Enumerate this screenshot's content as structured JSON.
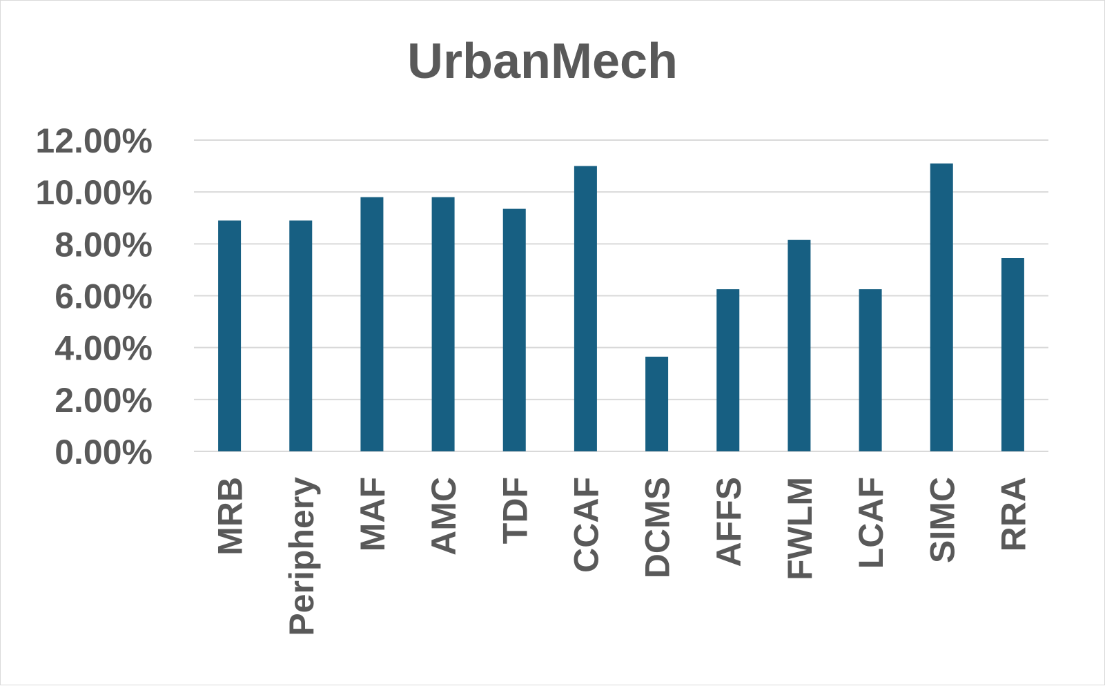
{
  "chart_data": {
    "type": "bar",
    "title": "UrbanMech",
    "xlabel": "",
    "ylabel": "",
    "categories": [
      "MRB",
      "Periphery",
      "MAF",
      "AMC",
      "TDF",
      "CCAF",
      "DCMS",
      "AFFS",
      "FWLM",
      "LCAF",
      "SIMC",
      "RRA"
    ],
    "series": [
      {
        "values": [
          8.9,
          8.9,
          9.8,
          9.8,
          9.35,
          11.0,
          3.65,
          6.25,
          8.15,
          6.25,
          11.1,
          7.45
        ],
        "color": "#175f82"
      }
    ],
    "yticks": [
      "0.00%",
      "2.00%",
      "4.00%",
      "6.00%",
      "8.00%",
      "10.00%",
      "12.00%"
    ],
    "ylim": [
      0,
      12
    ],
    "grid": true,
    "gridColor": "#d9d9d9",
    "legend": "none"
  }
}
